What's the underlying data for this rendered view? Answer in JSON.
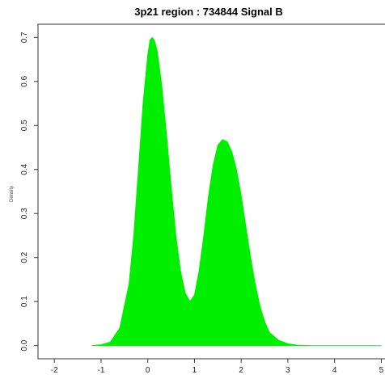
{
  "chart_data": {
    "type": "area",
    "title": "3p21 region : 734844 Signal B",
    "xlabel": "",
    "ylabel": "Density",
    "xlim": [
      -2.35,
      5.2
    ],
    "ylim": [
      -0.03,
      0.73
    ],
    "x_ticks": [
      -2,
      -1,
      0,
      1,
      2,
      3,
      4,
      5
    ],
    "y_ticks": [
      0.0,
      0.1,
      0.2,
      0.3,
      0.4,
      0.5,
      0.6,
      0.7
    ],
    "grid": false,
    "legend": "none",
    "fill_color": "#00ee00",
    "series": [
      {
        "x": [
          -1.2,
          -1.0,
          -0.8,
          -0.6,
          -0.4,
          -0.3,
          -0.2,
          -0.1,
          0.0,
          0.05,
          0.1,
          0.15,
          0.2,
          0.3,
          0.4,
          0.5,
          0.6,
          0.7,
          0.8,
          0.9,
          1.0,
          1.1,
          1.2,
          1.3,
          1.4,
          1.5,
          1.6,
          1.7,
          1.8,
          1.9,
          2.0,
          2.1,
          2.2,
          2.3,
          2.4,
          2.5,
          2.6,
          2.8,
          3.0,
          3.2,
          3.5,
          4.0,
          4.5,
          5.0
        ],
        "y": [
          0.0,
          0.002,
          0.008,
          0.04,
          0.14,
          0.25,
          0.4,
          0.55,
          0.66,
          0.695,
          0.7,
          0.69,
          0.67,
          0.59,
          0.48,
          0.36,
          0.25,
          0.17,
          0.12,
          0.1,
          0.115,
          0.17,
          0.25,
          0.34,
          0.41,
          0.455,
          0.468,
          0.463,
          0.44,
          0.4,
          0.34,
          0.27,
          0.2,
          0.14,
          0.09,
          0.055,
          0.03,
          0.012,
          0.004,
          0.001,
          0.0,
          0.0,
          0.0,
          0.0
        ]
      }
    ]
  }
}
